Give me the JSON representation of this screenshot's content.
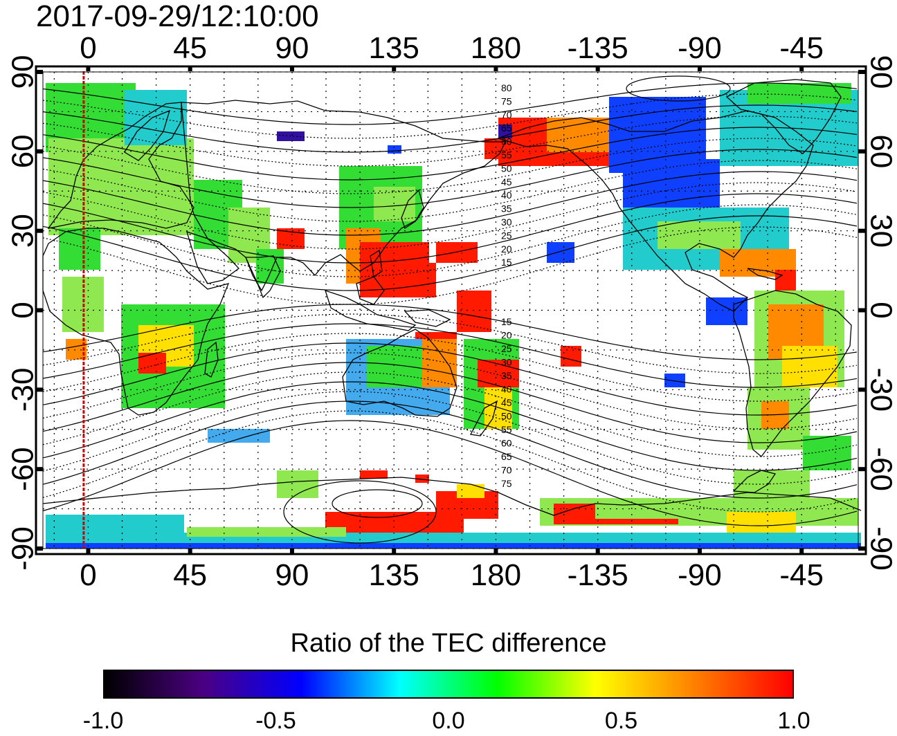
{
  "title": "2017-09-29/12:10:00",
  "map": {
    "top_longitude_labels": [
      "0",
      "45",
      "90",
      "135",
      "180",
      "-135",
      "-90",
      "-45"
    ],
    "bottom_longitude_labels": [
      "0",
      "45",
      "90",
      "135",
      "180",
      "-135",
      "-90",
      "-45"
    ],
    "left_latitude_labels": [
      "90",
      "60",
      "30",
      "0",
      "-30",
      "-60",
      "-90"
    ],
    "right_latitude_labels": [
      "90",
      "60",
      "30",
      "0",
      "-30",
      "-60",
      "-90"
    ],
    "longitude_ticks_deg": [
      0,
      45,
      90,
      135,
      180,
      225,
      270,
      315
    ],
    "latitude_ticks_deg": [
      90,
      60,
      30,
      0,
      -30,
      -60,
      -90
    ],
    "longitude_range_deg": [
      -20,
      340
    ],
    "latitude_range_deg": [
      -90,
      90
    ],
    "grid": "dotted, every 15 degrees",
    "marker_longitude_deg": -2,
    "marker_color": "#d40000",
    "contour_labels_north": [
      "80",
      "75",
      "70",
      "65",
      "60",
      "55",
      "50",
      "45",
      "40",
      "35",
      "30",
      "25",
      "20",
      "15"
    ],
    "contour_labels_south": [
      "15",
      "20",
      "25",
      "30",
      "35",
      "40",
      "45",
      "50",
      "55",
      "60",
      "65",
      "70",
      "75"
    ]
  },
  "colorbar": {
    "title": "Ratio of the TEC difference",
    "range": [
      -1.0,
      1.0
    ],
    "ticks": [
      "-1.0",
      "-0.5",
      "0.0",
      "0.5",
      "1.0"
    ],
    "colors": [
      "#000000",
      "#4b0082",
      "#0000ff",
      "#00ffff",
      "#00ff00",
      "#ffff00",
      "#ff8000",
      "#ff0000"
    ]
  }
}
